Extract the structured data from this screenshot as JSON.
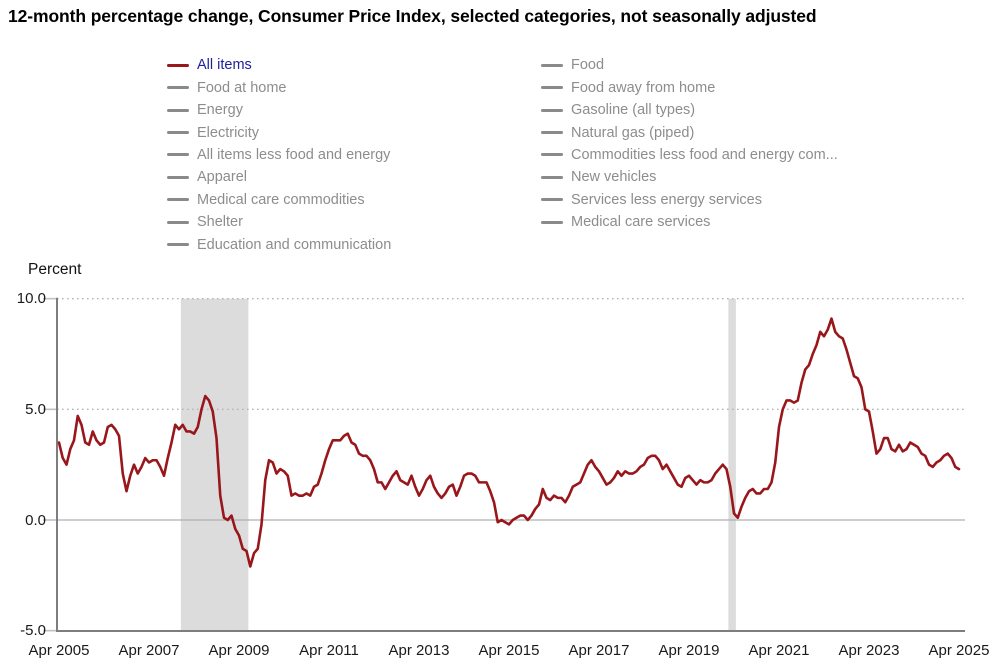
{
  "title": "12-month percentage change, Consumer Price Index, selected categories, not seasonally adjusted",
  "colors": {
    "line": "#99161b",
    "active_legend_text": "#21219b",
    "legend_text": "#8d8d8d",
    "legend_swatch": "#8a8a8a",
    "recession_band": "#dcdcdc",
    "grid_dotted": "#b5b5b5",
    "zero_line": "#b0b0b0",
    "axis": "#7d7d7d",
    "tick_mark": "#b8c3ce",
    "tick_text": "#1a1a1a"
  },
  "legend": {
    "columns": [
      {
        "items": [
          {
            "label": "All items",
            "active": true
          },
          {
            "label": "Food at home"
          },
          {
            "label": "Energy"
          },
          {
            "label": "Electricity"
          },
          {
            "label": "All items less food and energy"
          },
          {
            "label": "Apparel"
          },
          {
            "label": "Medical care commodities"
          },
          {
            "label": "Shelter"
          },
          {
            "label": "Education and communication"
          }
        ]
      },
      {
        "items": [
          {
            "label": "Food"
          },
          {
            "label": "Food away from home"
          },
          {
            "label": "Gasoline (all types)"
          },
          {
            "label": "Natural gas (piped)"
          },
          {
            "label": "Commodities less food and energy com..."
          },
          {
            "label": "New vehicles"
          },
          {
            "label": "Services less energy services"
          },
          {
            "label": "Medical care services"
          }
        ]
      }
    ]
  },
  "chart_data": {
    "type": "line",
    "title": "12-month percentage change, Consumer Price Index, selected categories, not seasonally adjusted",
    "xlabel": "",
    "ylabel": "Percent",
    "ylim": [
      -5.0,
      10.0
    ],
    "grid": "dotted horizontal at 5.0 and 10.0, solid at 0.0",
    "legend_position": "top",
    "y_ticks": [
      {
        "label": "10.0",
        "value": 10
      },
      {
        "label": "5.0",
        "value": 5
      },
      {
        "label": "0.0",
        "value": 0
      },
      {
        "label": "-5.0",
        "value": -5
      }
    ],
    "x_ticks": [
      "Apr 2005",
      "Apr 2007",
      "Apr 2009",
      "Apr 2011",
      "Apr 2013",
      "Apr 2015",
      "Apr 2017",
      "Apr 2019",
      "Apr 2021",
      "Apr 2023",
      "Apr 2025"
    ],
    "recession_bands": [
      {
        "label": "Recession Dec 2007 - Jun 2009",
        "start_index": 32,
        "end_index": 50
      },
      {
        "label": "Recession Feb 2020 - Apr 2020",
        "start_index": 178,
        "end_index": 180
      }
    ],
    "series": [
      {
        "name": "All items",
        "frequency": "monthly",
        "x_start": "Apr 2005",
        "x_end": "Apr 2025",
        "values": [
          3.5,
          2.8,
          2.5,
          3.2,
          3.6,
          4.7,
          4.3,
          3.5,
          3.4,
          4.0,
          3.6,
          3.4,
          3.5,
          4.2,
          4.3,
          4.1,
          3.8,
          2.1,
          1.3,
          2.0,
          2.5,
          2.1,
          2.4,
          2.8,
          2.6,
          2.7,
          2.7,
          2.4,
          2.0,
          2.8,
          3.5,
          4.3,
          4.1,
          4.3,
          4.0,
          4.0,
          3.9,
          4.2,
          5.0,
          5.6,
          5.4,
          4.9,
          3.7,
          1.1,
          0.1,
          0.0,
          0.2,
          -0.4,
          -0.7,
          -1.3,
          -1.4,
          -2.1,
          -1.5,
          -1.3,
          -0.2,
          1.8,
          2.7,
          2.6,
          2.1,
          2.3,
          2.2,
          2.0,
          1.1,
          1.2,
          1.1,
          1.1,
          1.2,
          1.1,
          1.5,
          1.6,
          2.1,
          2.7,
          3.2,
          3.6,
          3.6,
          3.6,
          3.8,
          3.9,
          3.5,
          3.4,
          3.0,
          2.9,
          2.9,
          2.7,
          2.3,
          1.7,
          1.7,
          1.4,
          1.7,
          2.0,
          2.2,
          1.8,
          1.7,
          1.6,
          2.0,
          1.5,
          1.1,
          1.4,
          1.8,
          2.0,
          1.5,
          1.2,
          1.0,
          1.2,
          1.5,
          1.6,
          1.1,
          1.5,
          2.0,
          2.1,
          2.1,
          2.0,
          1.7,
          1.7,
          1.7,
          1.3,
          0.8,
          -0.1,
          0.0,
          -0.1,
          -0.2,
          0.0,
          0.1,
          0.2,
          0.2,
          0.0,
          0.2,
          0.5,
          0.7,
          1.4,
          1.0,
          0.9,
          1.1,
          1.0,
          1.0,
          0.8,
          1.1,
          1.5,
          1.6,
          1.7,
          2.1,
          2.5,
          2.7,
          2.4,
          2.2,
          1.9,
          1.6,
          1.7,
          1.9,
          2.2,
          2.0,
          2.2,
          2.1,
          2.1,
          2.2,
          2.4,
          2.5,
          2.8,
          2.9,
          2.9,
          2.7,
          2.3,
          2.5,
          2.2,
          1.9,
          1.6,
          1.5,
          1.9,
          2.0,
          1.8,
          1.6,
          1.8,
          1.7,
          1.7,
          1.8,
          2.1,
          2.3,
          2.5,
          2.3,
          1.5,
          0.3,
          0.1,
          0.6,
          1.0,
          1.3,
          1.4,
          1.2,
          1.2,
          1.4,
          1.4,
          1.7,
          2.6,
          4.2,
          5.0,
          5.4,
          5.4,
          5.3,
          5.4,
          6.2,
          6.8,
          7.0,
          7.5,
          7.9,
          8.5,
          8.3,
          8.6,
          9.1,
          8.5,
          8.3,
          8.2,
          7.7,
          7.1,
          6.5,
          6.4,
          6.0,
          5.0,
          4.9,
          4.0,
          3.0,
          3.2,
          3.7,
          3.7,
          3.2,
          3.1,
          3.4,
          3.1,
          3.2,
          3.5,
          3.4,
          3.3,
          3.0,
          2.9,
          2.5,
          2.4,
          2.6,
          2.7,
          2.9,
          3.0,
          2.8,
          2.4,
          2.3
        ]
      }
    ]
  }
}
